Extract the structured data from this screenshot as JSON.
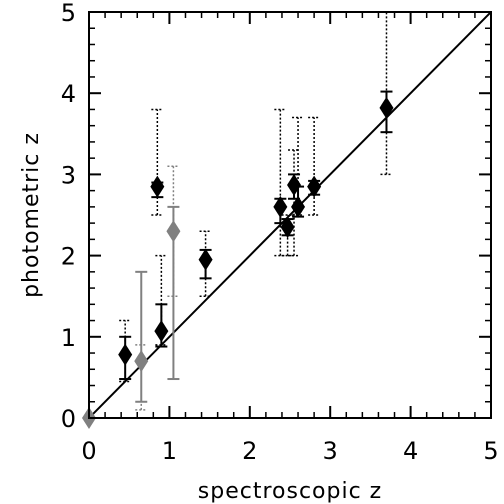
{
  "chart_data": {
    "type": "scatter",
    "xlabel": "spectroscopic z",
    "ylabel": "photometric z",
    "xlim": [
      0,
      5
    ],
    "ylim": [
      0,
      5
    ],
    "xticks": [
      "0",
      "1",
      "2",
      "3",
      "4",
      "5"
    ],
    "yticks": [
      "0",
      "1",
      "2",
      "3",
      "4",
      "5"
    ],
    "reference_line": "y = x",
    "grid": false,
    "series": [
      {
        "color": "#000000",
        "points": [
          {
            "x": 0.45,
            "y": 0.78,
            "err_lo": 0.48,
            "err_hi": 1.0,
            "outer_lo": 0.45,
            "outer_hi": 1.2
          },
          {
            "x": 0.85,
            "y": 2.85,
            "err_lo": 2.72,
            "err_hi": 2.9,
            "outer_lo": 2.5,
            "outer_hi": 3.8
          },
          {
            "x": 0.9,
            "y": 1.07,
            "err_lo": 0.88,
            "err_hi": 1.4,
            "outer_lo": 0.9,
            "outer_hi": 2.0
          },
          {
            "x": 1.45,
            "y": 1.95,
            "err_lo": 1.72,
            "err_hi": 2.07,
            "outer_lo": 1.5,
            "outer_hi": 2.3
          },
          {
            "x": 2.38,
            "y": 2.6,
            "err_lo": 2.4,
            "err_hi": 2.7,
            "outer_lo": 2.0,
            "outer_hi": 3.8
          },
          {
            "x": 2.47,
            "y": 2.35,
            "err_lo": 2.25,
            "err_hi": 2.45,
            "outer_lo": 2.0,
            "outer_hi": 2.5
          },
          {
            "x": 2.55,
            "y": 2.87,
            "err_lo": 2.7,
            "err_hi": 3.0,
            "outer_lo": 2.0,
            "outer_hi": 3.3
          },
          {
            "x": 2.6,
            "y": 2.6,
            "err_lo": 2.48,
            "err_hi": 2.85,
            "outer_lo": 2.5,
            "outer_hi": 3.7
          },
          {
            "x": 2.8,
            "y": 2.85,
            "err_lo": 2.75,
            "err_hi": 2.92,
            "outer_lo": 2.5,
            "outer_hi": 3.7
          },
          {
            "x": 3.7,
            "y": 3.82,
            "err_lo": 3.52,
            "err_hi": 4.02,
            "outer_lo": 3.0,
            "outer_hi": 5.0
          }
        ]
      },
      {
        "color": "#808080",
        "points": [
          {
            "x": 0.0,
            "y": 0.0
          },
          {
            "x": 0.65,
            "y": 0.7,
            "err_lo": 0.2,
            "err_hi": 1.8,
            "outer_lo": 0.1,
            "outer_hi": 0.9
          },
          {
            "x": 1.05,
            "y": 2.3,
            "err_lo": 0.48,
            "err_hi": 2.6,
            "outer_lo": 1.5,
            "outer_hi": 3.1
          }
        ]
      }
    ]
  }
}
